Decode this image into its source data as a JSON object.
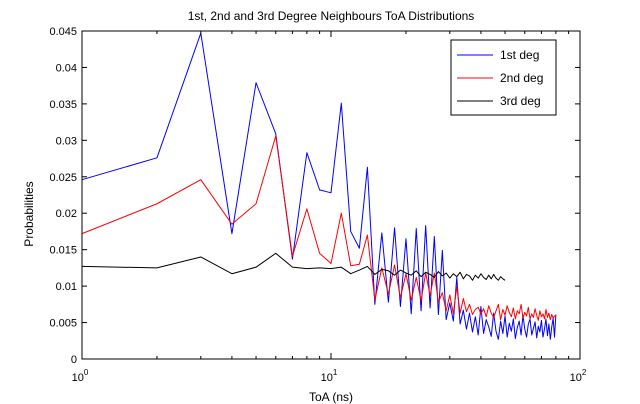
{
  "chart_data": {
    "type": "line",
    "title": "1st, 2nd and 3rd Degree Neighbours ToA Distributions",
    "xlabel": "ToA (ns)",
    "ylabel": "Probabilities",
    "xscale": "log",
    "xlim": [
      1,
      100
    ],
    "ylim": [
      0,
      0.045
    ],
    "x_ticks": [
      {
        "value": 1,
        "base": "10",
        "exp": "0"
      },
      {
        "value": 10,
        "base": "10",
        "exp": "1"
      },
      {
        "value": 100,
        "base": "10",
        "exp": "2"
      }
    ],
    "y_ticks": [
      {
        "value": 0,
        "label": "0"
      },
      {
        "value": 0.005,
        "label": "0.005"
      },
      {
        "value": 0.01,
        "label": "0.01"
      },
      {
        "value": 0.015,
        "label": "0.015"
      },
      {
        "value": 0.02,
        "label": "0.02"
      },
      {
        "value": 0.025,
        "label": "0.025"
      },
      {
        "value": 0.03,
        "label": "0.03"
      },
      {
        "value": 0.035,
        "label": "0.035"
      },
      {
        "value": 0.04,
        "label": "0.04"
      },
      {
        "value": 0.045,
        "label": "0.045"
      }
    ],
    "grid": false,
    "legend_position": "top-right",
    "series": [
      {
        "name": "1st deg",
        "color": "#0000ff",
        "x": [
          1,
          2,
          3,
          4,
          5,
          6,
          7,
          8,
          9,
          10,
          11,
          12,
          13,
          14,
          15,
          16,
          17,
          18,
          19,
          20,
          21,
          22,
          23,
          24,
          25,
          26,
          27,
          28,
          29,
          30,
          31,
          32,
          33,
          34,
          35,
          36,
          37,
          38,
          39,
          40,
          41,
          42,
          43,
          44,
          45,
          46,
          47,
          48,
          49,
          50,
          51,
          52,
          53,
          54,
          55,
          56,
          57,
          58,
          59,
          60,
          61,
          62,
          63,
          64,
          65,
          66,
          67,
          68,
          69,
          70,
          71,
          72,
          73,
          74,
          75,
          76,
          77,
          78,
          79,
          80
        ],
        "y": [
          0.0246,
          0.0276,
          0.0447,
          0.0172,
          0.0379,
          0.0309,
          0.0137,
          0.0283,
          0.0232,
          0.0228,
          0.0351,
          0.0175,
          0.0152,
          0.0263,
          0.0075,
          0.0173,
          0.0078,
          0.018,
          0.0072,
          0.0165,
          0.0062,
          0.0179,
          0.0066,
          0.0183,
          0.007,
          0.0168,
          0.0061,
          0.0149,
          0.0054,
          0.0077,
          0.0052,
          0.0112,
          0.0048,
          0.0067,
          0.0041,
          0.0063,
          0.0037,
          0.0058,
          0.0033,
          0.0072,
          0.0035,
          0.0054,
          0.0044,
          0.0031,
          0.0063,
          0.0038,
          0.0027,
          0.0052,
          0.0035,
          0.0059,
          0.003,
          0.0049,
          0.0038,
          0.0055,
          0.0028,
          0.0043,
          0.0052,
          0.0033,
          0.006,
          0.0041,
          0.003,
          0.0048,
          0.0055,
          0.0033,
          0.0042,
          0.0051,
          0.0029,
          0.0045,
          0.0037,
          0.0053,
          0.003,
          0.0041,
          0.0055,
          0.0032,
          0.0048,
          0.0027,
          0.0044,
          0.0056,
          0.003,
          0.0061
        ]
      },
      {
        "name": "2nd deg",
        "color": "#ff0000",
        "x": [
          1,
          2,
          3,
          4,
          5,
          6,
          7,
          8,
          9,
          10,
          11,
          12,
          13,
          14,
          15,
          16,
          17,
          18,
          19,
          20,
          21,
          22,
          23,
          24,
          25,
          26,
          27,
          28,
          29,
          30,
          31,
          32,
          33,
          34,
          35,
          36,
          37,
          38,
          39,
          40,
          41,
          42,
          43,
          44,
          45,
          46,
          47,
          48,
          49,
          50,
          51,
          52,
          53,
          54,
          55,
          56,
          57,
          58,
          59,
          60,
          61,
          62,
          63,
          64,
          65,
          66,
          67,
          68,
          69,
          70,
          71,
          72,
          73,
          74,
          75,
          76,
          77,
          78,
          79,
          80
        ],
        "y": [
          0.0172,
          0.0213,
          0.0246,
          0.0185,
          0.0213,
          0.0306,
          0.0141,
          0.0206,
          0.0145,
          0.0131,
          0.02,
          0.0128,
          0.013,
          0.017,
          0.0081,
          0.0125,
          0.0089,
          0.0129,
          0.0084,
          0.0117,
          0.0081,
          0.0112,
          0.008,
          0.0118,
          0.0087,
          0.0118,
          0.0078,
          0.0091,
          0.0066,
          0.0088,
          0.0062,
          0.0099,
          0.0063,
          0.0083,
          0.0065,
          0.0075,
          0.0061,
          0.0068,
          0.0071,
          0.0062,
          0.0069,
          0.0058,
          0.0073,
          0.0063,
          0.0057,
          0.0066,
          0.0075,
          0.0054,
          0.0068,
          0.006,
          0.0073,
          0.0064,
          0.0058,
          0.007,
          0.0055,
          0.0066,
          0.0062,
          0.0075,
          0.0056,
          0.0064,
          0.0059,
          0.0071,
          0.0055,
          0.0062,
          0.0057,
          0.0069,
          0.006,
          0.0053,
          0.0066,
          0.0058,
          0.0062,
          0.0055,
          0.0068,
          0.0057,
          0.0063,
          0.0054,
          0.0061,
          0.0056,
          0.0059,
          0.0058
        ]
      },
      {
        "name": "3rd deg",
        "color": "#000000",
        "x": [
          1,
          2,
          3,
          4,
          5,
          6,
          7,
          8,
          9,
          10,
          11,
          12,
          13,
          14,
          15,
          16,
          17,
          18,
          19,
          20,
          21,
          22,
          23,
          24,
          25,
          26,
          27,
          28,
          29,
          30,
          31,
          32,
          33,
          34,
          35,
          36,
          37,
          38,
          39,
          40,
          41,
          42,
          43,
          44,
          45,
          46,
          47,
          48,
          49,
          50
        ],
        "y": [
          0.0127,
          0.0125,
          0.014,
          0.0117,
          0.0126,
          0.0145,
          0.0126,
          0.0124,
          0.0125,
          0.0124,
          0.0126,
          0.0117,
          0.0122,
          0.0127,
          0.0116,
          0.0123,
          0.0121,
          0.0115,
          0.0122,
          0.0118,
          0.0115,
          0.0121,
          0.0113,
          0.0119,
          0.0116,
          0.0112,
          0.012,
          0.0114,
          0.0118,
          0.0111,
          0.0117,
          0.0113,
          0.0119,
          0.011,
          0.0116,
          0.0114,
          0.0108,
          0.0115,
          0.0111,
          0.0117,
          0.0112,
          0.0109,
          0.0115,
          0.011,
          0.0116,
          0.0111,
          0.0108,
          0.0113,
          0.011,
          0.0108
        ]
      }
    ]
  }
}
